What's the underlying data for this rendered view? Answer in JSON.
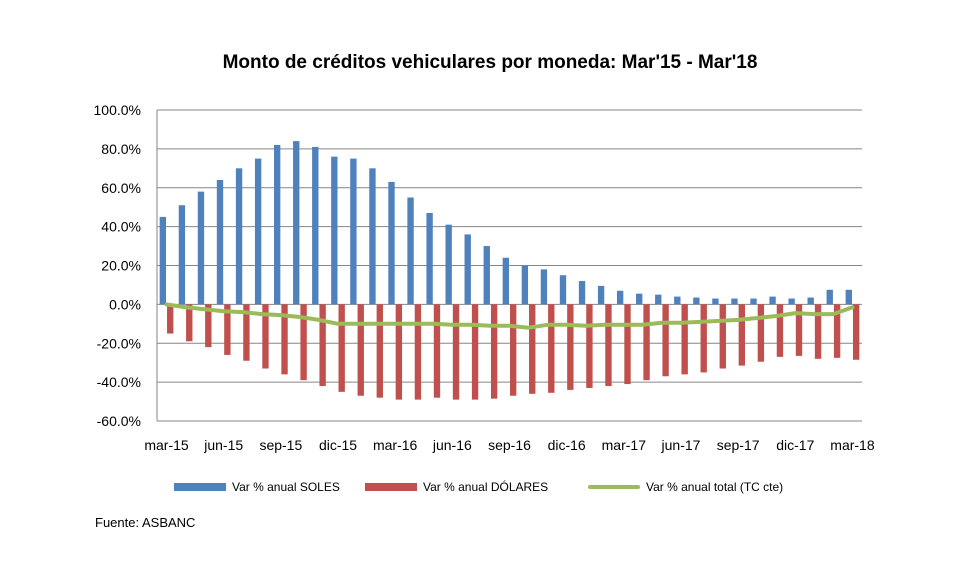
{
  "chart_data": {
    "type": "bar",
    "title": "Monto de créditos vehiculares por moneda: Mar'15 - Mar'18",
    "xlabel": "",
    "ylabel": "",
    "ylim": [
      -60,
      100
    ],
    "y_ticks": [
      "100.0%",
      "80.0%",
      "60.0%",
      "40.0%",
      "20.0%",
      "0.0%",
      "-20.0%",
      "-40.0%",
      "-60.0%"
    ],
    "y_tick_values": [
      100,
      80,
      60,
      40,
      20,
      0,
      -20,
      -40,
      -60
    ],
    "x_tick_labels": [
      "mar-15",
      "jun-15",
      "sep-15",
      "dic-15",
      "mar-16",
      "jun-16",
      "sep-16",
      "dic-16",
      "mar-17",
      "jun-17",
      "sep-17",
      "dic-17",
      "mar-18"
    ],
    "categories": [
      "mar-15",
      "abr-15",
      "may-15",
      "jun-15",
      "jul-15",
      "ago-15",
      "sep-15",
      "oct-15",
      "nov-15",
      "dic-15",
      "ene-16",
      "feb-16",
      "mar-16",
      "abr-16",
      "may-16",
      "jun-16",
      "jul-16",
      "ago-16",
      "sep-16",
      "oct-16",
      "nov-16",
      "dic-16",
      "ene-17",
      "feb-17",
      "mar-17",
      "abr-17",
      "may-17",
      "jun-17",
      "jul-17",
      "ago-17",
      "sep-17",
      "oct-17",
      "nov-17",
      "dic-17",
      "ene-18",
      "feb-18",
      "mar-18"
    ],
    "series": [
      {
        "name": "Var % anual SOLES",
        "kind": "bar",
        "color": "#4F81BD",
        "values": [
          45,
          51,
          58,
          64,
          70,
          75,
          82,
          84,
          81,
          76,
          75,
          70,
          63,
          55,
          47,
          41,
          36,
          30,
          24,
          20,
          18,
          15,
          12,
          9.5,
          7,
          5.5,
          5,
          4,
          3.5,
          3,
          3,
          3,
          4,
          3,
          3.5,
          7.5,
          7.5
        ]
      },
      {
        "name": "Var % anual DÓLARES",
        "kind": "bar",
        "color": "#C0504D",
        "values": [
          -15,
          -19,
          -22,
          -26,
          -29,
          -33,
          -36,
          -39,
          -42,
          -45,
          -47,
          -48,
          -49,
          -49,
          -48,
          -49,
          -49,
          -48.5,
          -47,
          -46,
          -45.5,
          -44,
          -43,
          -42,
          -41,
          -39,
          -37,
          -36,
          -35,
          -33,
          -31.5,
          -29.5,
          -27,
          -26.5,
          -28,
          -27.5,
          -28.5
        ]
      },
      {
        "name": "Var % anual total (TC cte)",
        "kind": "line",
        "color": "#9BBB59",
        "values": [
          0,
          -1.5,
          -2.5,
          -3.5,
          -4,
          -5,
          -5.5,
          -6.5,
          -8,
          -10,
          -10,
          -10,
          -10,
          -10,
          -10,
          -10.5,
          -10.5,
          -11,
          -11,
          -12,
          -10.5,
          -10.5,
          -11,
          -10.5,
          -10.5,
          -10.5,
          -9.5,
          -9.5,
          -9,
          -8.5,
          -8,
          -7,
          -6,
          -4.5,
          -5,
          -5,
          -1.5
        ]
      }
    ]
  },
  "source": "Fuente: ASBANC"
}
